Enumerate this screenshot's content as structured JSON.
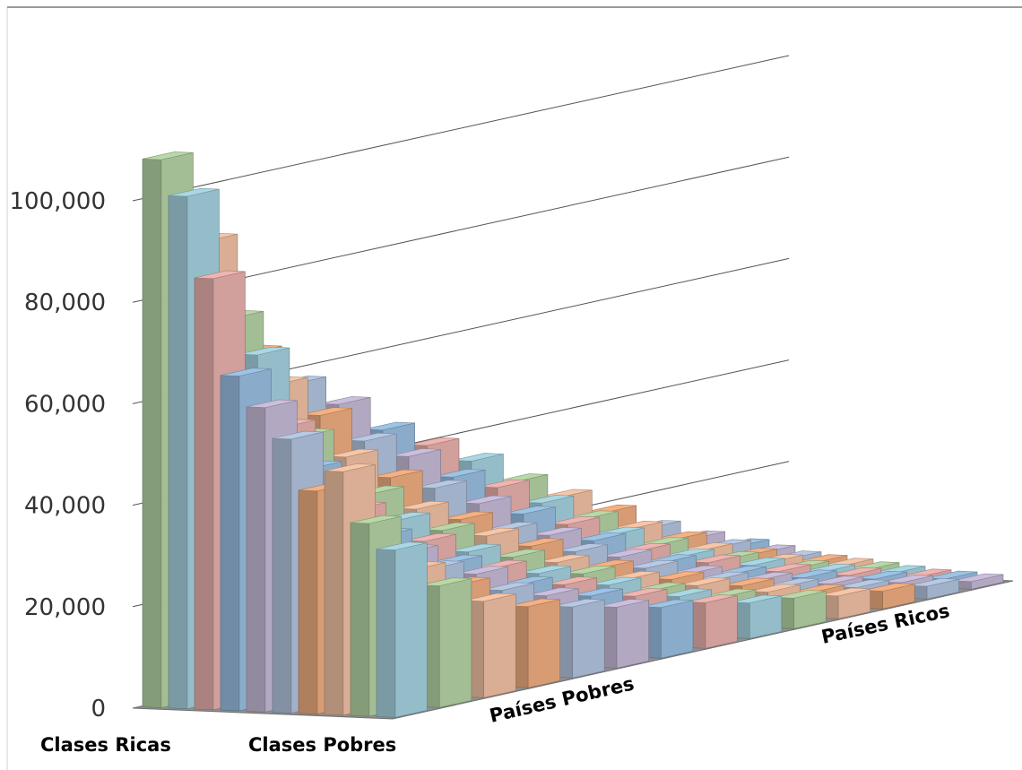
{
  "chart_data": {
    "type": "bar",
    "subtype": "3d-bar",
    "title": "",
    "y_axis": {
      "ticks": [
        "0",
        "20,000",
        "40,000",
        "60,000",
        "80,000",
        "100,000"
      ],
      "tick_values": [
        0,
        20000,
        40000,
        60000,
        80000,
        100000
      ],
      "ylim": [
        0,
        120000
      ]
    },
    "depth_axis": {
      "labels": [
        "Clases Ricas",
        "Clases Pobres"
      ],
      "count": 10
    },
    "x_axis": {
      "labels": [
        "Países Pobres",
        "Países Ricos"
      ],
      "count": 14
    },
    "grid": true,
    "legend": "none",
    "pastel_colors": [
      "#b9d8a8",
      "#b7c9e4",
      "#eeb5b1",
      "#f7c6a8",
      "#cbbfdd",
      "#a9d7e4",
      "#f4b183",
      "#9dc3e6"
    ],
    "values": [
      [
        108000,
        101000,
        85000,
        66000,
        60000,
        54000,
        44000,
        48000,
        38000,
        33000
      ],
      [
        90000,
        75000,
        68000,
        54000,
        46000,
        39000,
        35000,
        30000,
        27000,
        24000
      ],
      [
        66000,
        60000,
        50000,
        42000,
        36000,
        31000,
        28000,
        25000,
        22000,
        19000
      ],
      [
        58000,
        52000,
        44000,
        37000,
        32000,
        28000,
        24000,
        22000,
        19000,
        16000
      ],
      [
        52000,
        45000,
        38000,
        32000,
        28000,
        24000,
        21000,
        18000,
        16000,
        14000
      ],
      [
        45000,
        40000,
        34000,
        28000,
        25000,
        21000,
        18000,
        16000,
        14000,
        12000
      ],
      [
        40000,
        34000,
        29000,
        24000,
        21000,
        18000,
        16000,
        14000,
        12000,
        10000
      ],
      [
        35000,
        30000,
        25000,
        21000,
        18000,
        15000,
        13000,
        11000,
        10000,
        9000
      ],
      [
        29000,
        25000,
        21000,
        18000,
        15000,
        13000,
        11000,
        10000,
        8000,
        7000
      ],
      [
        24000,
        20000,
        17000,
        14000,
        12000,
        10000,
        9000,
        8000,
        7000,
        6000
      ],
      [
        19000,
        16000,
        13000,
        11000,
        10000,
        8000,
        7000,
        6000,
        5000,
        4500
      ],
      [
        14000,
        12000,
        10000,
        8500,
        7500,
        6500,
        5500,
        4500,
        4000,
        3500
      ],
      [
        10000,
        8500,
        7000,
        6000,
        5000,
        4500,
        4000,
        3500,
        3000,
        2500
      ],
      [
        6500,
        5500,
        4500,
        4000,
        3500,
        3000,
        2500,
        2000,
        1800,
        1500
      ]
    ]
  }
}
